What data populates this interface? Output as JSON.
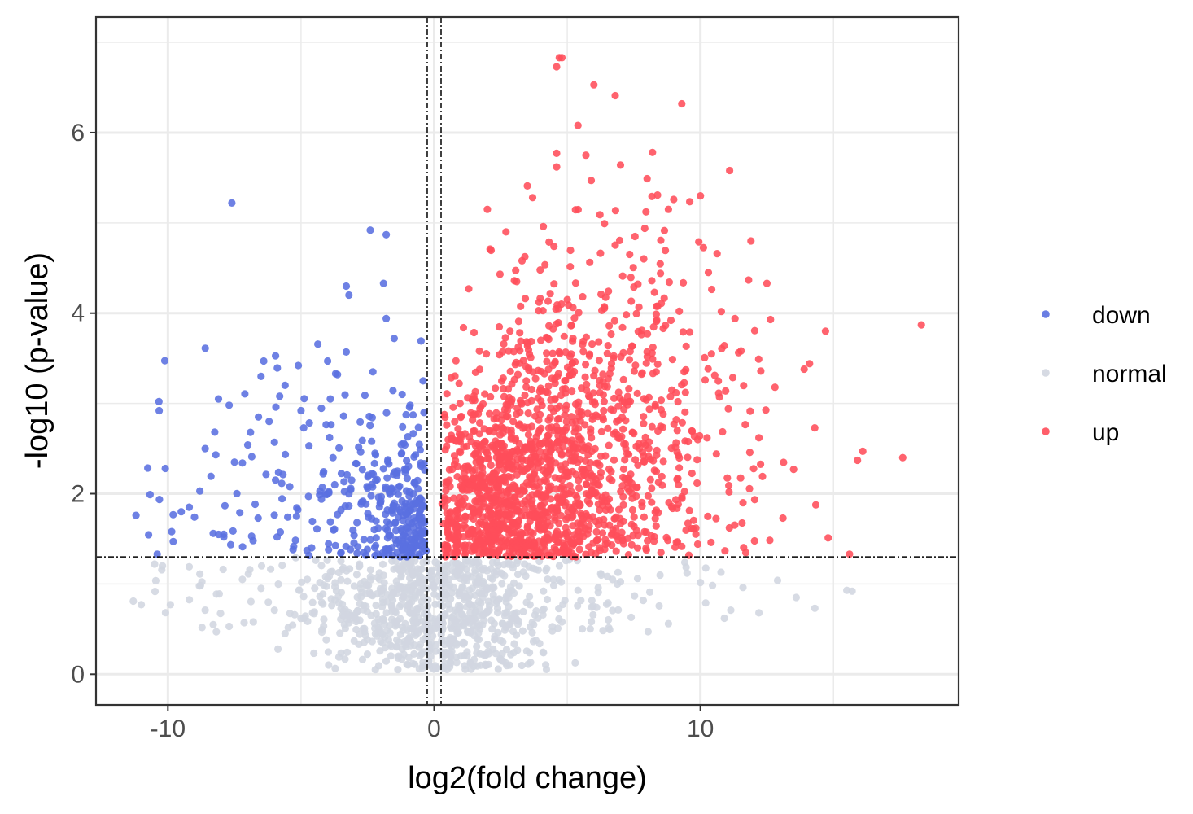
{
  "chart_data": {
    "type": "scatter",
    "xlabel": "log2(fold change)",
    "ylabel": "-log10 (p-value)",
    "xlim": [
      -12.7,
      19.7
    ],
    "ylim": [
      -0.34,
      7.28
    ],
    "x_ticks": [
      -10,
      0,
      10
    ],
    "x_tick_labels": [
      "-10",
      "0",
      "10"
    ],
    "y_ticks": [
      0,
      2,
      4,
      6
    ],
    "y_tick_labels": [
      "0",
      "2",
      "4",
      "6"
    ],
    "grid": true,
    "legend_position": "right",
    "thresholds": {
      "x": [
        -0.26,
        0.26
      ],
      "y": 1.3
    },
    "point_counts": {
      "down": 400,
      "normal": 900,
      "up": 1700
    },
    "series": [
      {
        "name": "down",
        "color": "#5a70e0",
        "points": [
          [
            -11.2,
            1.76
          ],
          [
            -10.4,
            1.33
          ],
          [
            -10.1,
            2.28
          ],
          [
            -9.8,
            1.47
          ],
          [
            -9.5,
            1.8
          ],
          [
            -9.2,
            1.85
          ],
          [
            -9.0,
            1.74
          ],
          [
            -8.8,
            2.03
          ],
          [
            -8.6,
            2.5
          ],
          [
            -8.3,
            1.56
          ],
          [
            -8.2,
            2.43
          ],
          [
            -8.1,
            3.05
          ],
          [
            -7.9,
            1.52
          ],
          [
            -7.9,
            1.55
          ],
          [
            -7.6,
            5.22
          ],
          [
            -7.7,
            2.98
          ],
          [
            -7.5,
            2.35
          ],
          [
            -7.3,
            1.79
          ],
          [
            -7.2,
            2.34
          ],
          [
            -7.0,
            2.54
          ],
          [
            -6.9,
            2.68
          ],
          [
            -6.8,
            1.48
          ],
          [
            -6.6,
            2.85
          ],
          [
            -6.5,
            3.3
          ],
          [
            -6.4,
            3.47
          ],
          [
            -6.2,
            2.8
          ],
          [
            -6.0,
            2.57
          ],
          [
            -5.9,
            1.52
          ],
          [
            -5.8,
            3.08
          ],
          [
            -5.6,
            3.2
          ],
          [
            -5.5,
            1.74
          ],
          [
            -5.3,
            1.38
          ],
          [
            -5.1,
            3.42
          ],
          [
            -5.0,
            2.92
          ],
          [
            -4.9,
            2.73
          ],
          [
            -4.7,
            2.53
          ],
          [
            -4.6,
            1.4
          ],
          [
            -4.4,
            1.61
          ],
          [
            -4.2,
            2.07
          ],
          [
            -4.0,
            3.47
          ],
          [
            -3.9,
            3.05
          ],
          [
            -3.8,
            2.4
          ],
          [
            -3.7,
            3.33
          ],
          [
            -3.5,
            1.82
          ],
          [
            -3.4,
            2.86
          ],
          [
            -3.3,
            3.57
          ],
          [
            -3.3,
            4.3
          ],
          [
            -3.2,
            4.2
          ],
          [
            -3.1,
            2.15
          ],
          [
            -2.9,
            1.68
          ],
          [
            -2.7,
            2.59
          ],
          [
            -2.6,
            3.09
          ],
          [
            -2.5,
            2.06
          ],
          [
            -2.4,
            4.92
          ],
          [
            -2.3,
            3.35
          ],
          [
            -2.2,
            2.43
          ],
          [
            -2.0,
            1.92
          ],
          [
            -1.9,
            4.33
          ],
          [
            -1.8,
            3.94
          ],
          [
            -1.8,
            4.87
          ],
          [
            -1.7,
            2.33
          ],
          [
            -1.6,
            2.06
          ],
          [
            -1.5,
            3.72
          ],
          [
            -1.4,
            2.2
          ],
          [
            -1.3,
            1.82
          ],
          [
            -1.2,
            3.1
          ],
          [
            -1.1,
            2.54
          ],
          [
            -1.0,
            1.62
          ],
          [
            -0.9,
            2.98
          ],
          [
            -0.8,
            1.88
          ],
          [
            -0.7,
            2.43
          ],
          [
            -0.6,
            1.42
          ],
          [
            -0.5,
            2.34
          ],
          [
            -0.4,
            1.7
          ],
          [
            -0.3,
            1.37
          ]
        ]
      },
      {
        "name": "normal",
        "color": "#d1d6e0",
        "points": [
          [
            -11.3,
            0.81
          ],
          [
            -11.0,
            0.77
          ],
          [
            -10.5,
            1.22
          ],
          [
            -9.2,
            1.19
          ],
          [
            -8.8,
            1.11
          ],
          [
            -8.6,
            0.71
          ],
          [
            -8.3,
            0.55
          ],
          [
            -7.7,
            0.53
          ],
          [
            -7.2,
            1.05
          ],
          [
            -6.5,
            0.95
          ],
          [
            -6.0,
            0.71
          ],
          [
            -5.6,
            0.45
          ],
          [
            -5.2,
            1.29
          ],
          [
            -4.9,
            0.86
          ],
          [
            -4.5,
            0.69
          ],
          [
            -4.0,
            1.06
          ],
          [
            -3.6,
            0.86
          ],
          [
            -3.2,
            0.57
          ],
          [
            -2.8,
            1.2
          ],
          [
            -2.4,
            0.89
          ],
          [
            -2.1,
            0.61
          ],
          [
            -1.9,
            0.95
          ],
          [
            -1.6,
            0.31
          ],
          [
            -1.3,
            1.15
          ],
          [
            -1.0,
            0.72
          ],
          [
            -0.7,
            0.48
          ],
          [
            -0.4,
            1.05
          ],
          [
            -0.2,
            0.15
          ],
          [
            0.1,
            0.07
          ],
          [
            0.3,
            0.9
          ],
          [
            0.6,
            0.34
          ],
          [
            1.0,
            1.1
          ],
          [
            1.4,
            0.62
          ],
          [
            1.9,
            0.89
          ],
          [
            2.4,
            0.46
          ],
          [
            3.0,
            1.01
          ],
          [
            3.6,
            0.77
          ],
          [
            4.2,
            1.15
          ],
          [
            4.8,
            0.58
          ],
          [
            5.4,
            0.93
          ],
          [
            6.1,
            0.74
          ],
          [
            6.7,
            1.05
          ],
          [
            7.4,
            0.63
          ],
          [
            8.1,
            0.91
          ],
          [
            8.8,
            0.56
          ],
          [
            9.5,
            1.12
          ],
          [
            10.2,
            0.79
          ],
          [
            10.9,
            0.62
          ],
          [
            11.6,
            0.96
          ],
          [
            12.2,
            0.68
          ],
          [
            12.9,
            1.04
          ],
          [
            13.6,
            0.85
          ],
          [
            14.3,
            0.73
          ],
          [
            15.5,
            0.93
          ],
          [
            15.7,
            0.92
          ]
        ]
      },
      {
        "name": "up",
        "color": "#ff4d5a",
        "points": [
          [
            0.3,
            1.89
          ],
          [
            0.6,
            2.08
          ],
          [
            0.9,
            2.72
          ],
          [
            1.1,
            3.84
          ],
          [
            1.3,
            4.27
          ],
          [
            1.5,
            2.43
          ],
          [
            1.7,
            3.58
          ],
          [
            2.0,
            5.15
          ],
          [
            2.1,
            4.71
          ],
          [
            2.3,
            3.17
          ],
          [
            2.5,
            2.47
          ],
          [
            2.7,
            4.9
          ],
          [
            2.9,
            3.02
          ],
          [
            3.1,
            4.35
          ],
          [
            3.3,
            4.58
          ],
          [
            3.5,
            5.41
          ],
          [
            3.7,
            5.28
          ],
          [
            3.9,
            3.06
          ],
          [
            4.1,
            4.96
          ],
          [
            4.3,
            2.65
          ],
          [
            4.5,
            4.74
          ],
          [
            4.6,
            5.62
          ],
          [
            4.6,
            5.77
          ],
          [
            4.6,
            6.73
          ],
          [
            4.7,
            6.9
          ],
          [
            4.8,
            6.83
          ],
          [
            5.0,
            4.15
          ],
          [
            5.2,
            3.69
          ],
          [
            5.4,
            6.08
          ],
          [
            5.7,
            5.75
          ],
          [
            5.9,
            5.47
          ],
          [
            6.0,
            6.53
          ],
          [
            6.3,
            4.03
          ],
          [
            6.6,
            3.33
          ],
          [
            6.8,
            6.41
          ],
          [
            7.0,
            5.64
          ],
          [
            7.2,
            2.5
          ],
          [
            7.5,
            4.29
          ],
          [
            7.8,
            3.81
          ],
          [
            8.0,
            5.49
          ],
          [
            8.2,
            5.78
          ],
          [
            8.5,
            4.44
          ],
          [
            8.8,
            5.15
          ],
          [
            9.0,
            5.26
          ],
          [
            9.3,
            6.32
          ],
          [
            9.6,
            3.79
          ],
          [
            9.9,
            2.6
          ],
          [
            10.0,
            5.3
          ],
          [
            10.3,
            4.45
          ],
          [
            10.6,
            2.44
          ],
          [
            10.9,
            3.64
          ],
          [
            11.1,
            5.58
          ],
          [
            11.3,
            3.94
          ],
          [
            11.6,
            1.9
          ],
          [
            11.9,
            4.8
          ],
          [
            12.2,
            2.62
          ],
          [
            12.5,
            4.33
          ],
          [
            12.8,
            3.18
          ],
          [
            13.1,
            1.73
          ],
          [
            13.5,
            2.27
          ],
          [
            13.9,
            3.38
          ],
          [
            14.1,
            3.44
          ],
          [
            14.7,
            3.8
          ],
          [
            14.8,
            1.51
          ],
          [
            15.6,
            1.33
          ],
          [
            15.9,
            2.37
          ],
          [
            16.1,
            2.47
          ],
          [
            17.6,
            2.4
          ],
          [
            18.3,
            3.87
          ]
        ]
      }
    ]
  },
  "legend": {
    "items": [
      {
        "label": "down",
        "color": "#5a70e0"
      },
      {
        "label": "normal",
        "color": "#d1d6e0"
      },
      {
        "label": "up",
        "color": "#ff4d5a"
      }
    ]
  }
}
